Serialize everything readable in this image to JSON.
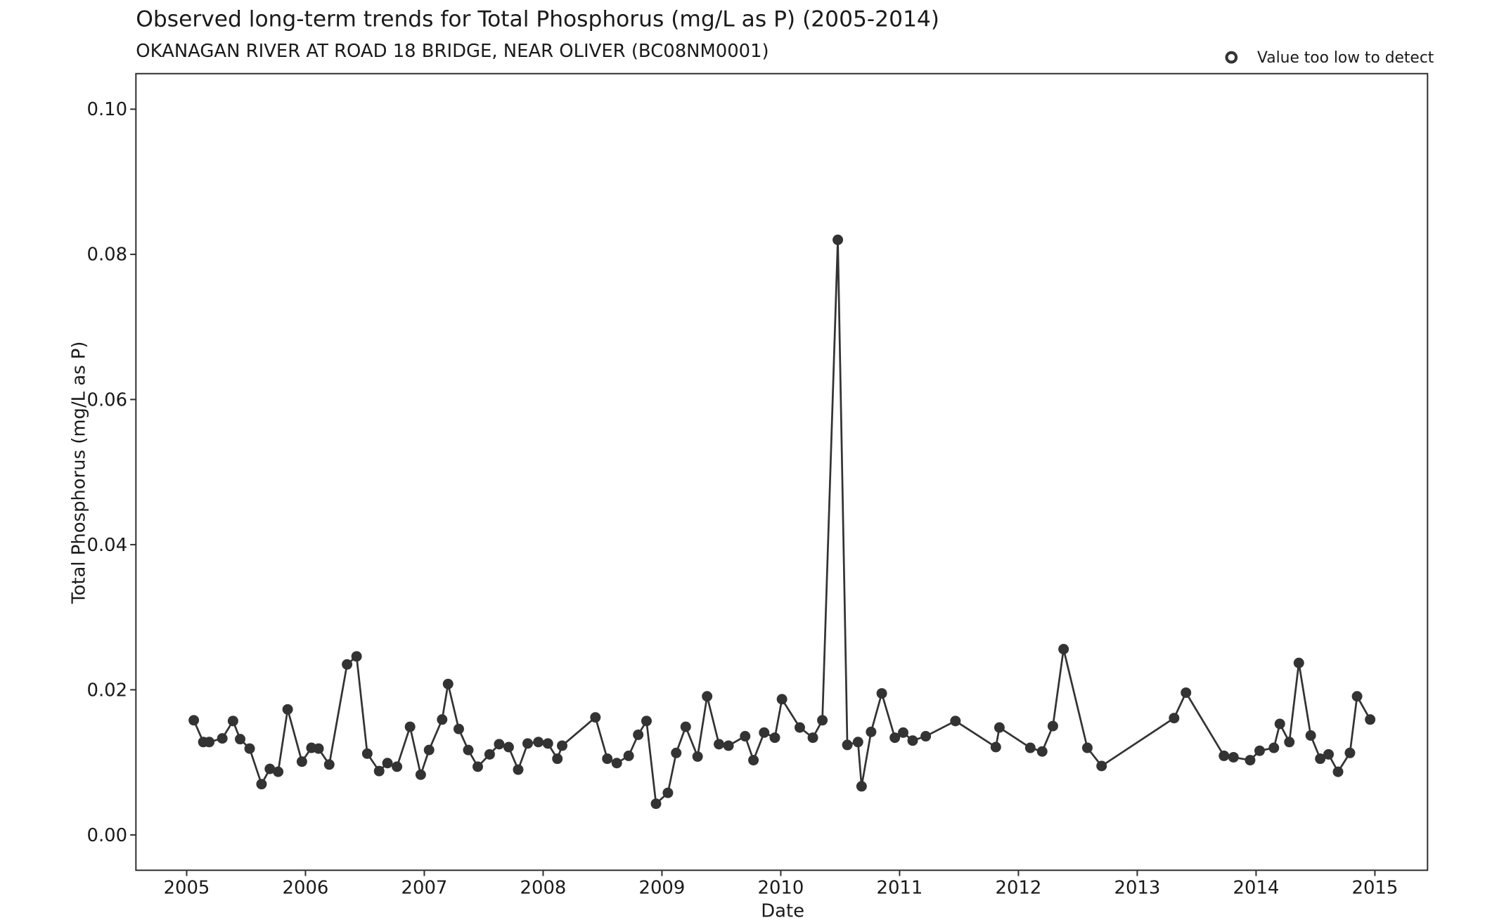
{
  "chart_data": {
    "type": "line",
    "title": "Observed long-term trends for Total Phosphorus (mg/L as P) (2005-2014)",
    "subtitle": "OKANAGAN RIVER AT ROAD 18 BRIDGE, NEAR OLIVER (BC08NM0001)",
    "x_label": "Date",
    "y_label": "Total Phosphorus (mg/L as P)",
    "legend_entry": "Value too low to detect",
    "grid": false,
    "color": "#333333",
    "xlim": [
      2004.573,
      2015.443
    ],
    "ylim": [
      -0.00487,
      0.1049
    ],
    "xticks": [
      2005,
      2006,
      2007,
      2008,
      2009,
      2010,
      2011,
      2012,
      2013,
      2014,
      2015
    ],
    "yticks": [
      {
        "value": 0,
        "label": "0.00"
      },
      {
        "value": 0.02,
        "label": "0.02"
      },
      {
        "value": 0.04,
        "label": "0.04"
      },
      {
        "value": 0.06,
        "label": "0.06"
      },
      {
        "value": 0.08,
        "label": "0.08"
      },
      {
        "value": 0.1,
        "label": "0.10"
      }
    ],
    "x": [
      2005.06,
      2005.14,
      2005.19,
      2005.3,
      2005.39,
      2005.45,
      2005.53,
      2005.63,
      2005.7,
      2005.77,
      2005.85,
      2005.97,
      2006.05,
      2006.11,
      2006.2,
      2006.35,
      2006.43,
      2006.52,
      2006.62,
      2006.69,
      2006.77,
      2006.88,
      2006.97,
      2007.04,
      2007.15,
      2007.2,
      2007.29,
      2007.37,
      2007.45,
      2007.55,
      2007.63,
      2007.71,
      2007.79,
      2007.87,
      2007.96,
      2008.04,
      2008.12,
      2008.16,
      2008.44,
      2008.54,
      2008.62,
      2008.72,
      2008.8,
      2008.87,
      2008.95,
      2009.05,
      2009.12,
      2009.2,
      2009.3,
      2009.38,
      2009.48,
      2009.56,
      2009.7,
      2009.77,
      2009.86,
      2009.95,
      2010.01,
      2010.16,
      2010.27,
      2010.35,
      2010.48,
      2010.56,
      2010.65,
      2010.68,
      2010.76,
      2010.85,
      2010.96,
      2011.03,
      2011.11,
      2011.22,
      2011.47,
      2011.81,
      2011.84,
      2012.1,
      2012.2,
      2012.29,
      2012.38,
      2012.58,
      2012.7,
      2013.31,
      2013.41,
      2013.73,
      2013.81,
      2013.95,
      2014.03,
      2014.15,
      2014.2,
      2014.28,
      2014.36,
      2014.46,
      2014.54,
      2014.61,
      2014.69,
      2014.79,
      2014.85,
      2014.96
    ],
    "values": [
      0.0158,
      0.0128,
      0.0128,
      0.0133,
      0.0157,
      0.0132,
      0.0119,
      0.007,
      0.0091,
      0.0087,
      0.0173,
      0.0101,
      0.012,
      0.0119,
      0.0097,
      0.0235,
      0.0246,
      0.0112,
      0.0088,
      0.0099,
      0.0094,
      0.0149,
      0.0083,
      0.0117,
      0.0159,
      0.0208,
      0.0146,
      0.0117,
      0.0094,
      0.0111,
      0.0125,
      0.0121,
      0.009,
      0.0126,
      0.0128,
      0.0126,
      0.0105,
      0.0123,
      0.0162,
      0.0105,
      0.0099,
      0.0109,
      0.0138,
      0.0157,
      0.0043,
      0.0058,
      0.0113,
      0.0149,
      0.0108,
      0.0191,
      0.0125,
      0.0123,
      0.0136,
      0.0103,
      0.0141,
      0.0134,
      0.0187,
      0.0148,
      0.0134,
      0.0158,
      0.082,
      0.0124,
      0.0128,
      0.0067,
      0.0142,
      0.0195,
      0.0134,
      0.0141,
      0.013,
      0.0136,
      0.0157,
      0.0121,
      0.0148,
      0.012,
      0.0115,
      0.015,
      0.0256,
      0.012,
      0.0095,
      0.0161,
      0.0196,
      0.0109,
      0.0107,
      0.0103,
      0.0116,
      0.012,
      0.0153,
      0.0128,
      0.0237,
      0.0137,
      0.0105,
      0.0111,
      0.0087,
      0.0113,
      0.0191,
      0.0159
    ]
  }
}
